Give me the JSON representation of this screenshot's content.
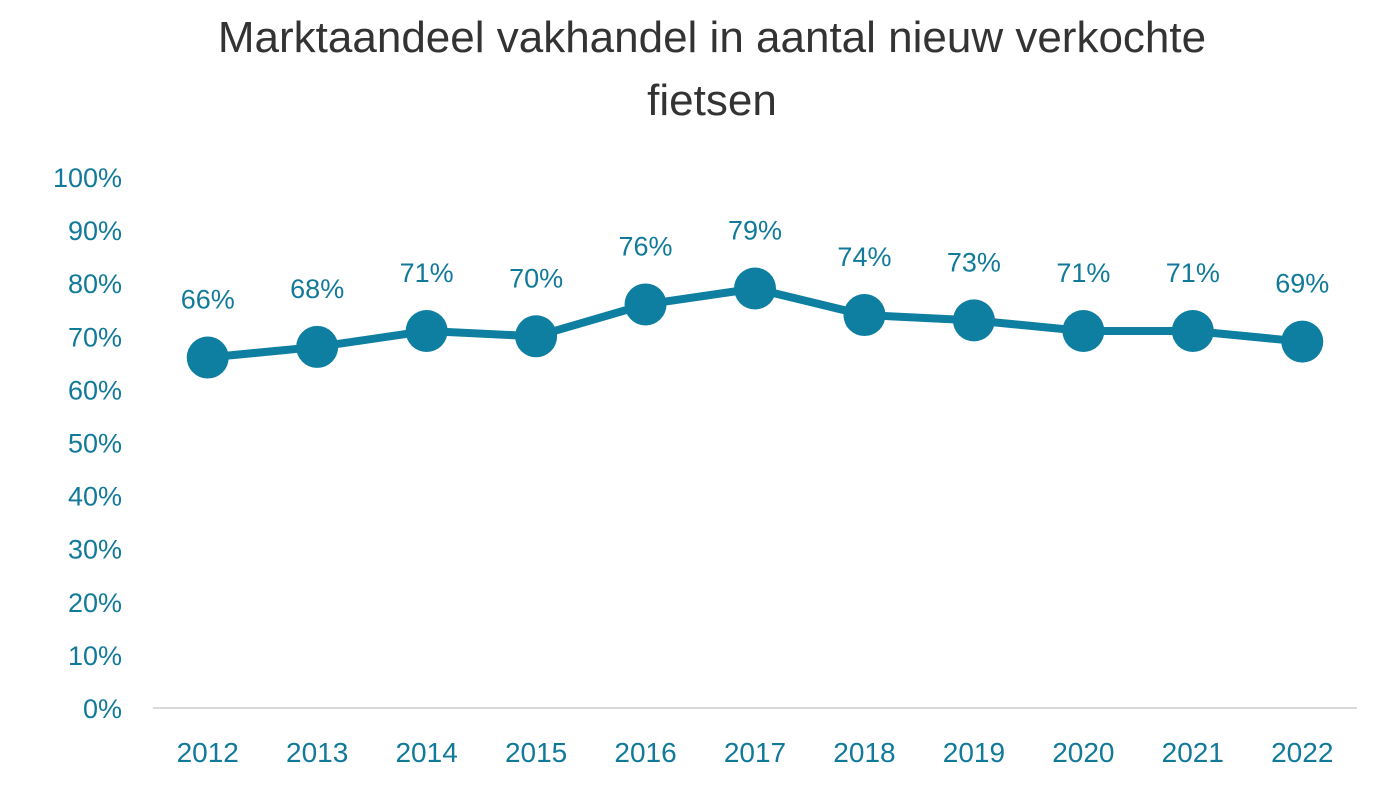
{
  "chart_data": {
    "type": "line",
    "title_lines": [
      "Marktaandeel vakhandel in aantal nieuw verkochte",
      "fietsen"
    ],
    "xlabel": "",
    "ylabel": "",
    "categories": [
      "2012",
      "2013",
      "2014",
      "2015",
      "2016",
      "2017",
      "2018",
      "2019",
      "2020",
      "2021",
      "2022"
    ],
    "series": [
      {
        "values": [
          66,
          68,
          71,
          70,
          76,
          79,
          74,
          73,
          71,
          71,
          69
        ],
        "data_labels": [
          "66%",
          "68%",
          "71%",
          "70%",
          "76%",
          "79%",
          "74%",
          "73%",
          "71%",
          "71%",
          "69%"
        ]
      }
    ],
    "ylim": [
      0,
      100
    ],
    "yticks": [
      0,
      10,
      20,
      30,
      40,
      50,
      60,
      70,
      80,
      90,
      100
    ],
    "ytick_labels": [
      "0%",
      "10%",
      "20%",
      "30%",
      "40%",
      "50%",
      "60%",
      "70%",
      "80%",
      "90%",
      "100%"
    ],
    "grid": false,
    "legend": "none",
    "colors": {
      "series": "#0e7fa0",
      "axis": "#d9d9d9",
      "text": "#117a9a",
      "title": "#333333"
    }
  }
}
